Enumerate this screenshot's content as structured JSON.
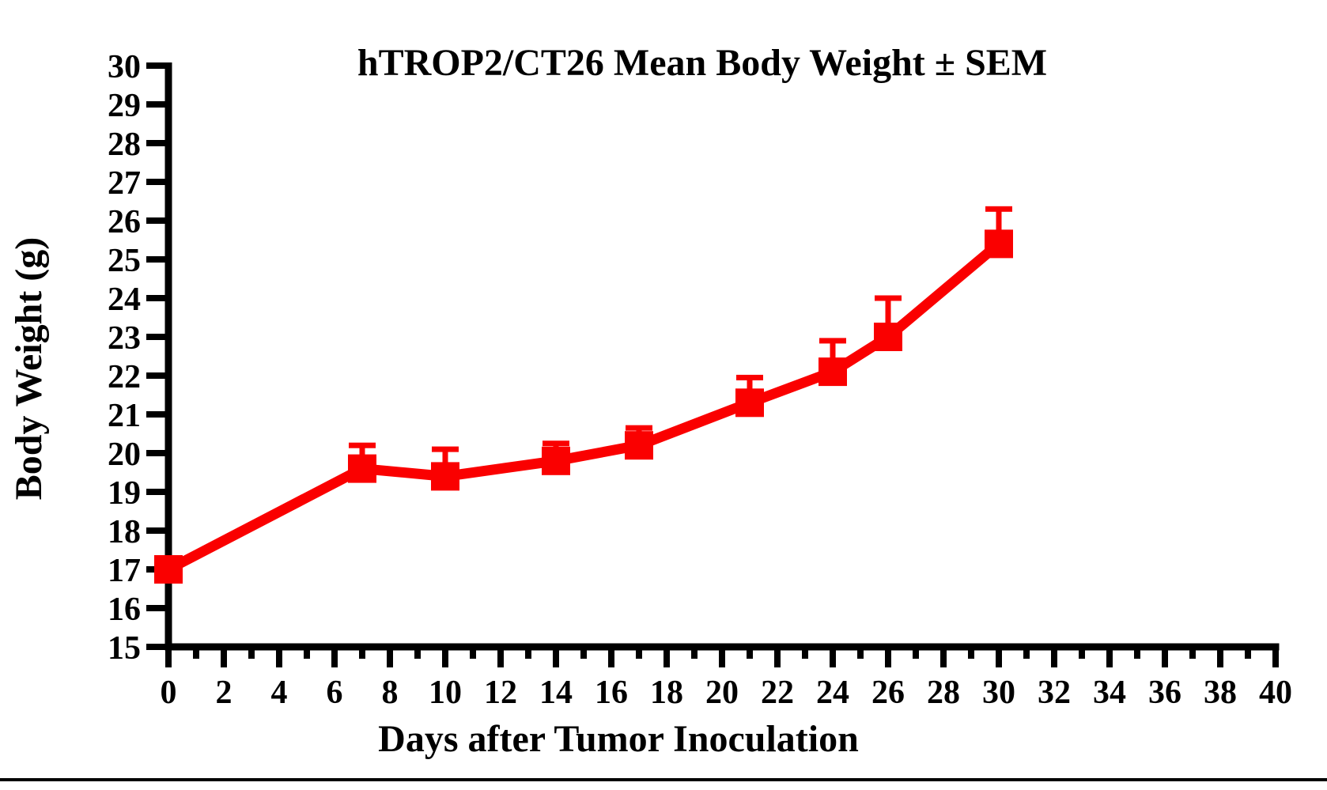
{
  "page": {
    "background": "#ffffff",
    "bottom_rule_color": "#000000"
  },
  "chart_data": {
    "type": "line",
    "title": "hTROP2/CT26 Mean Body Weight ± SEM",
    "xlabel": "Days after Tumor Inoculation",
    "ylabel": "Body Weight (g)",
    "xlim": [
      0,
      40
    ],
    "ylim": [
      15,
      30
    ],
    "x_tick_labels": [
      0,
      2,
      4,
      6,
      8,
      10,
      12,
      14,
      16,
      18,
      20,
      22,
      24,
      26,
      28,
      30,
      32,
      34,
      36,
      38,
      40
    ],
    "x_minor_tick_step": 1,
    "y_tick_labels": [
      15,
      16,
      17,
      18,
      19,
      20,
      21,
      22,
      23,
      24,
      25,
      26,
      27,
      28,
      29,
      30
    ],
    "grid": false,
    "legend": "none",
    "series": [
      {
        "name": "hTROP2/CT26",
        "color": "#FA0000",
        "marker": "square",
        "error_bars": "upper-SEM",
        "x": [
          0,
          7,
          10,
          14,
          17,
          21,
          24,
          26,
          30
        ],
        "y": [
          17.0,
          19.6,
          19.4,
          19.8,
          20.2,
          21.3,
          22.1,
          23.0,
          25.4
        ],
        "sem_upper": [
          0.2,
          0.6,
          0.7,
          0.45,
          0.45,
          0.65,
          0.8,
          1.0,
          0.9
        ]
      }
    ],
    "axis_color": "#000000",
    "text_color": "#000000"
  }
}
